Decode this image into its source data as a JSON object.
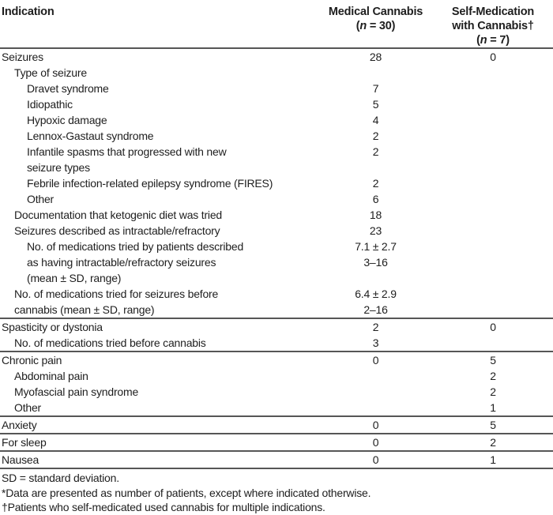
{
  "colors": {
    "background": "#ffffff",
    "text": "#1e1e1e",
    "rule": "#565656"
  },
  "table": {
    "header": {
      "col1": "Indication",
      "col2_line1": "Medical Cannabis",
      "col2_n_pre": "(",
      "col2_n": "n",
      "col2_n_post": " = 30)",
      "col3_line1": "Self-Medication",
      "col3_line2": "with Cannabis†",
      "col3_n_pre": "(",
      "col3_n": "n",
      "col3_n_post": " = 7)"
    },
    "rows": [
      {
        "indent": 0,
        "lines": [
          "Seizures"
        ],
        "medical_cannabis": [
          "28"
        ],
        "self_medication": [
          "0"
        ]
      },
      {
        "indent": 1,
        "lines": [
          "Type of seizure"
        ],
        "medical_cannabis": [],
        "self_medication": []
      },
      {
        "indent": 2,
        "lines": [
          "Dravet syndrome"
        ],
        "medical_cannabis": [
          "7"
        ],
        "self_medication": []
      },
      {
        "indent": 2,
        "lines": [
          "Idiopathic"
        ],
        "medical_cannabis": [
          "5"
        ],
        "self_medication": []
      },
      {
        "indent": 2,
        "lines": [
          "Hypoxic damage"
        ],
        "medical_cannabis": [
          "4"
        ],
        "self_medication": []
      },
      {
        "indent": 2,
        "lines": [
          "Lennox-Gastaut syndrome"
        ],
        "medical_cannabis": [
          "2"
        ],
        "self_medication": []
      },
      {
        "indent": 2,
        "lines": [
          "Infantile spasms that progressed with new",
          "seizure types"
        ],
        "medical_cannabis": [
          "2"
        ],
        "self_medication": []
      },
      {
        "indent": 2,
        "lines": [
          "Febrile infection-related epilepsy syndrome (FIRES)"
        ],
        "medical_cannabis": [
          "2"
        ],
        "self_medication": []
      },
      {
        "indent": 2,
        "lines": [
          "Other"
        ],
        "medical_cannabis": [
          "6"
        ],
        "self_medication": []
      },
      {
        "indent": 1,
        "lines": [
          "Documentation that ketogenic diet was tried"
        ],
        "medical_cannabis": [
          "18"
        ],
        "self_medication": []
      },
      {
        "indent": 1,
        "lines": [
          "Seizures described as intractable/refractory"
        ],
        "medical_cannabis": [
          "23"
        ],
        "self_medication": []
      },
      {
        "indent": 2,
        "lines": [
          "No. of medications tried by patients described",
          "as having intractable/refractory seizures",
          "(mean ± SD, range)"
        ],
        "medical_cannabis": [
          "7.1 ± 2.7",
          "3–16"
        ],
        "self_medication": []
      },
      {
        "indent": 1,
        "lines": [
          "No. of medications tried for seizures before",
          "cannabis (mean ± SD, range)"
        ],
        "medical_cannabis": [
          "6.4 ± 2.9",
          "2–16"
        ],
        "self_medication": []
      },
      {
        "indent": 0,
        "lines": [
          "Spasticity or dystonia"
        ],
        "medical_cannabis": [
          "2"
        ],
        "self_medication": [
          "0"
        ]
      },
      {
        "indent": 1,
        "lines": [
          "No. of medications tried before cannabis"
        ],
        "medical_cannabis": [
          "3"
        ],
        "self_medication": []
      },
      {
        "indent": 0,
        "lines": [
          "Chronic pain"
        ],
        "medical_cannabis": [
          "0"
        ],
        "self_medication": [
          "5"
        ]
      },
      {
        "indent": 1,
        "lines": [
          "Abdominal pain"
        ],
        "medical_cannabis": [],
        "self_medication": [
          "2"
        ]
      },
      {
        "indent": 1,
        "lines": [
          "Myofascial pain syndrome"
        ],
        "medical_cannabis": [],
        "self_medication": [
          "2"
        ]
      },
      {
        "indent": 1,
        "lines": [
          "Other"
        ],
        "medical_cannabis": [],
        "self_medication": [
          "1"
        ]
      },
      {
        "indent": 0,
        "lines": [
          "Anxiety"
        ],
        "medical_cannabis": [
          "0"
        ],
        "self_medication": [
          "5"
        ]
      },
      {
        "indent": 0,
        "lines": [
          "For sleep"
        ],
        "medical_cannabis": [
          "0"
        ],
        "self_medication": [
          "2"
        ]
      },
      {
        "indent": 0,
        "lines": [
          "Nausea"
        ],
        "medical_cannabis": [
          "0"
        ],
        "self_medication": [
          "1"
        ]
      }
    ],
    "footnotes": [
      "SD = standard deviation.",
      "*Data are presented as number of patients, except where indicated otherwise.",
      "†Patients who self-medicated used cannabis for multiple indications."
    ]
  }
}
